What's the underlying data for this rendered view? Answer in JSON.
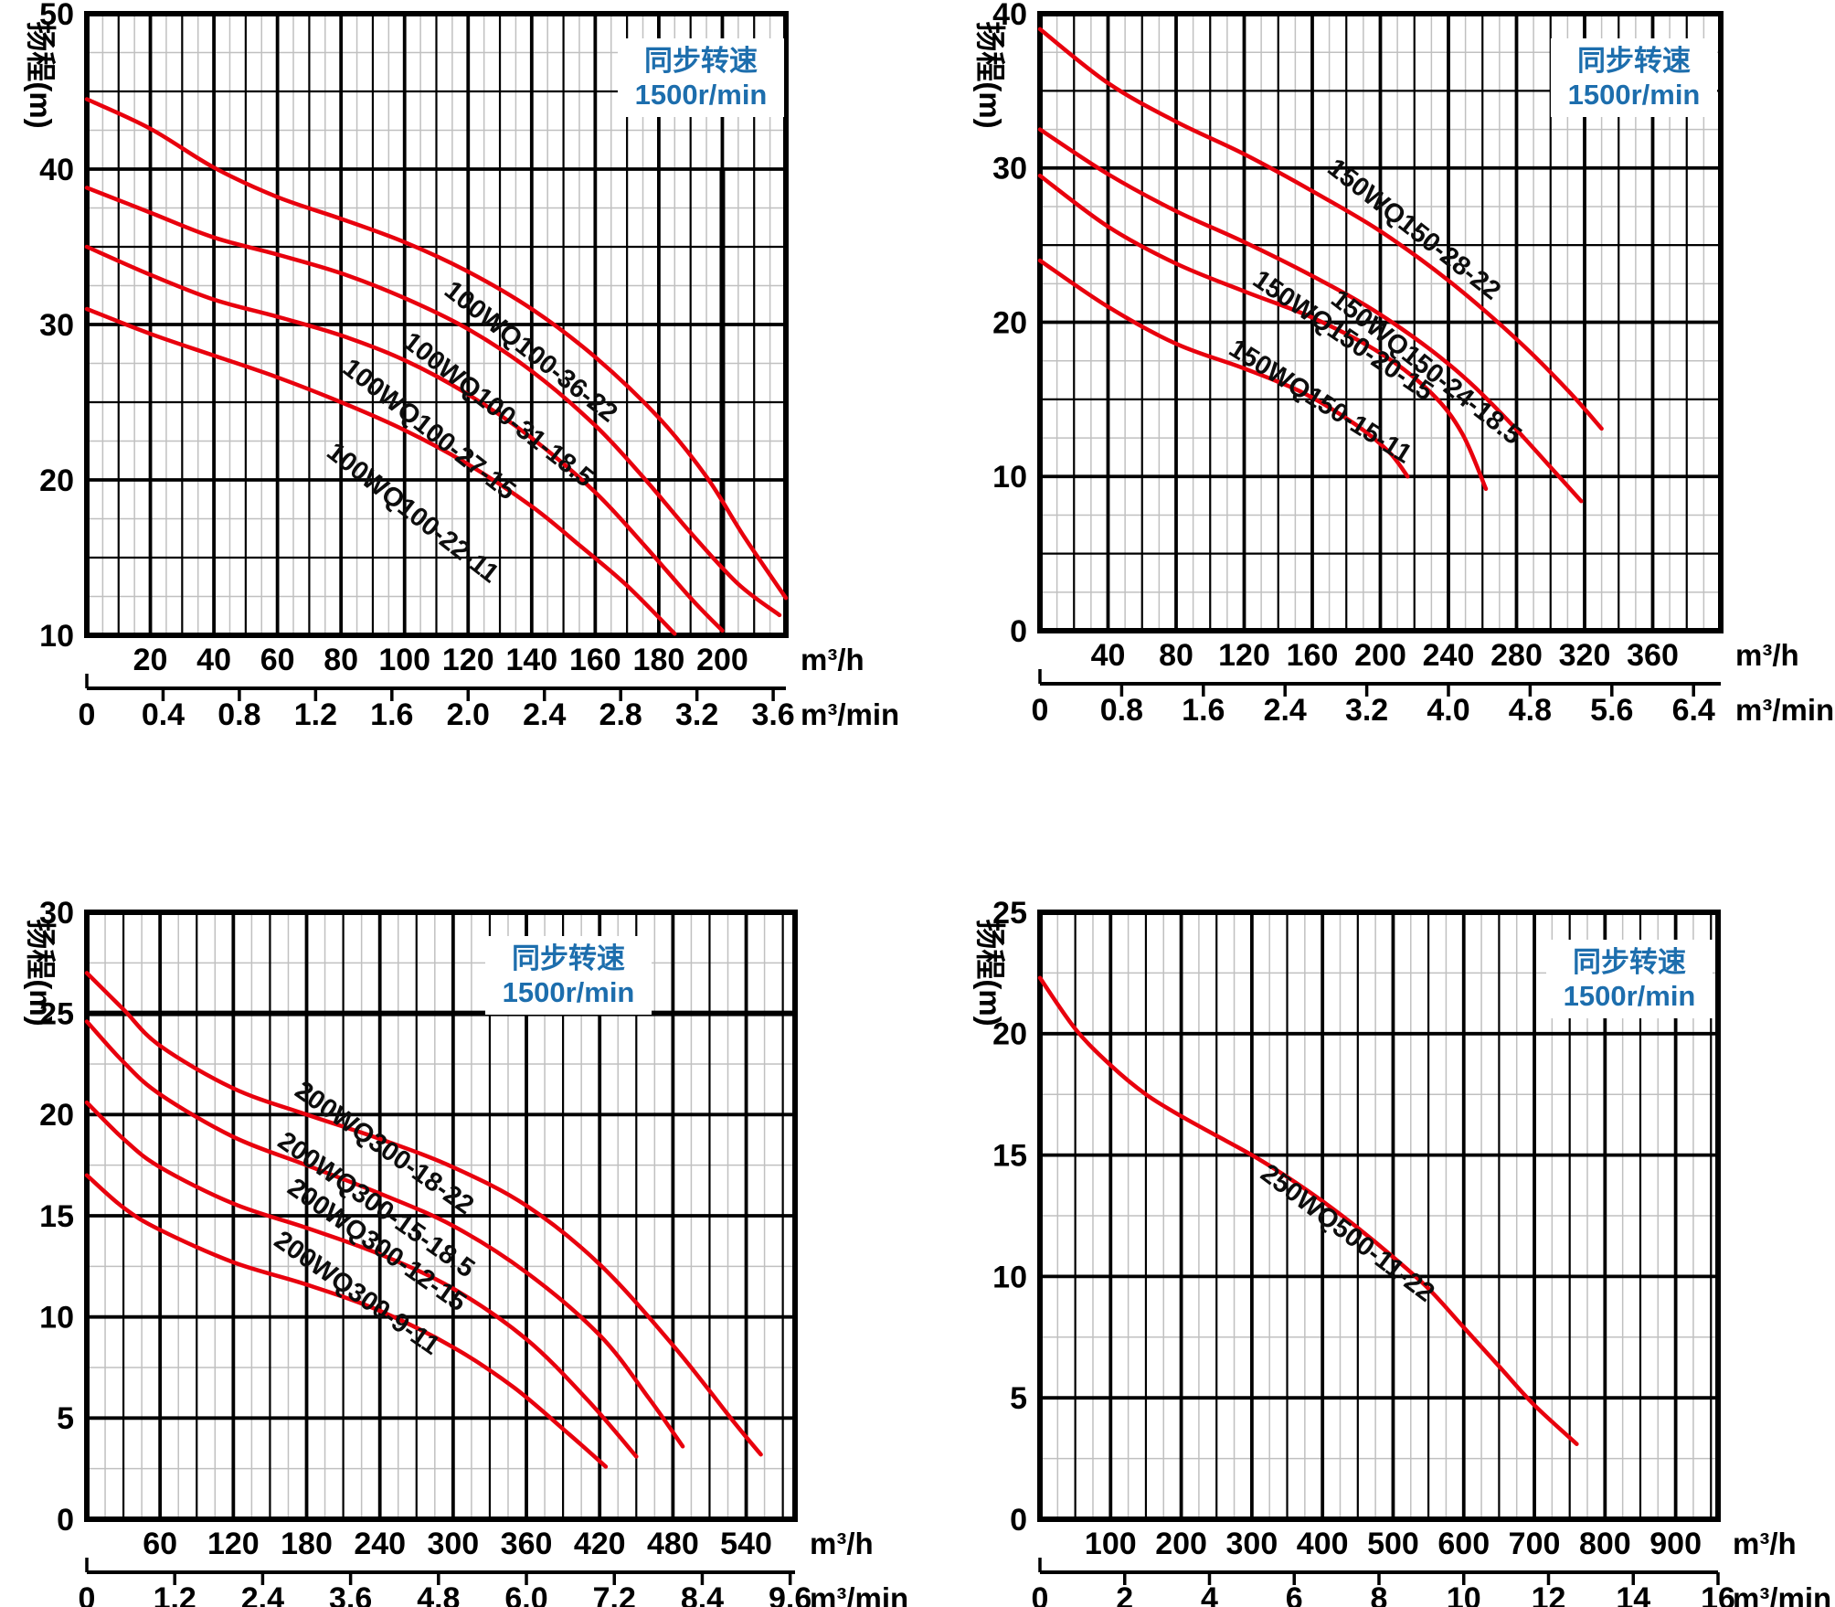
{
  "colors": {
    "curve": "#e8000d",
    "grid_major": "#000000",
    "grid_minor": "#c0c0c0",
    "text": "#000000",
    "note_blue": "#1d6ead",
    "background": "#ffffff"
  },
  "chart_data": [
    {
      "type": "line",
      "name": "100WQ100",
      "y_axis_title": "扬程(m)",
      "speed_note": {
        "line1": "同步转速",
        "line2": "1500r/min"
      },
      "x_axis": {
        "min": 0,
        "max": 220,
        "major_step": 20,
        "mid_step": 10,
        "minor_step": 5,
        "tick_labels": [
          20,
          40,
          60,
          80,
          100,
          120,
          140,
          160,
          180,
          200
        ],
        "unit": "m³/h"
      },
      "x_axis_secondary": {
        "tick_labels": [
          "0",
          "0.4",
          "0.8",
          "1.2",
          "1.6",
          "2.0",
          "2.4",
          "2.8",
          "3.2",
          "3.6"
        ],
        "unit": "m³/min",
        "m3h_per_unit": 60
      },
      "y_axis": {
        "min": 10,
        "max": 50,
        "major_step": 10,
        "mid_step": 5,
        "minor_step": 2.5,
        "tick_labels": [
          50,
          40,
          30,
          20,
          10
        ]
      },
      "emphasis_lines": [
        {
          "orient": "v",
          "at": 200,
          "from": 10,
          "to": 40
        }
      ],
      "series": [
        {
          "label": "100WQ100-36-22",
          "points": [
            [
              0,
              44.5
            ],
            [
              20,
              42.6
            ],
            [
              40,
              40.1
            ],
            [
              60,
              38.2
            ],
            [
              80,
              36.8
            ],
            [
              100,
              35.3
            ],
            [
              120,
              33.4
            ],
            [
              140,
              31.0
            ],
            [
              160,
              27.9
            ],
            [
              180,
              24.0
            ],
            [
              195,
              20.2
            ],
            [
              207,
              16.3
            ],
            [
              220,
              12.4
            ]
          ],
          "label_anchor": [
            112,
            32.0
          ],
          "label_angle": 38
        },
        {
          "label": "100WQ100-31-18.5",
          "points": [
            [
              0,
              38.8
            ],
            [
              20,
              37.2
            ],
            [
              40,
              35.6
            ],
            [
              60,
              34.5
            ],
            [
              80,
              33.3
            ],
            [
              100,
              31.7
            ],
            [
              120,
              29.7
            ],
            [
              140,
              27.0
            ],
            [
              160,
              23.5
            ],
            [
              175,
              20.2
            ],
            [
              190,
              16.6
            ],
            [
              205,
              13.3
            ],
            [
              218,
              11.3
            ]
          ],
          "label_anchor": [
            99,
            28.7
          ],
          "label_angle": 38
        },
        {
          "label": "100WQ100-27-15",
          "points": [
            [
              0,
              35.0
            ],
            [
              20,
              33.2
            ],
            [
              40,
              31.6
            ],
            [
              60,
              30.5
            ],
            [
              80,
              29.3
            ],
            [
              100,
              27.7
            ],
            [
              120,
              25.5
            ],
            [
              140,
              22.7
            ],
            [
              160,
              19.2
            ],
            [
              175,
              15.9
            ],
            [
              190,
              12.4
            ],
            [
              200,
              10.3
            ]
          ],
          "label_anchor": [
            80,
            27.0
          ],
          "label_angle": 38
        },
        {
          "label": "100WQ100-22-11",
          "points": [
            [
              0,
              31.0
            ],
            [
              20,
              29.4
            ],
            [
              40,
              28.0
            ],
            [
              60,
              26.6
            ],
            [
              80,
              25.0
            ],
            [
              100,
              23.2
            ],
            [
              120,
              21.0
            ],
            [
              140,
              18.3
            ],
            [
              155,
              15.8
            ],
            [
              170,
              13.2
            ],
            [
              185,
              10.1
            ]
          ],
          "label_anchor": [
            75,
            21.6
          ],
          "label_angle": 38
        }
      ]
    },
    {
      "type": "line",
      "name": "150WQ150",
      "y_axis_title": "扬程(m)",
      "speed_note": {
        "line1": "同步转速",
        "line2": "1500r/min"
      },
      "x_axis": {
        "min": 0,
        "max": 400,
        "major_step": 40,
        "mid_step": 20,
        "minor_step": 10,
        "tick_labels": [
          40,
          80,
          120,
          160,
          200,
          240,
          280,
          320,
          360
        ],
        "unit": "m³/h"
      },
      "x_axis_secondary": {
        "tick_labels": [
          "0",
          "0.8",
          "1.6",
          "2.4",
          "3.2",
          "4.0",
          "4.8",
          "5.6",
          "6.4"
        ],
        "unit": "m³/min",
        "m3h_per_unit": 60
      },
      "y_axis": {
        "min": 0,
        "max": 40,
        "major_step": 10,
        "mid_step": 5,
        "minor_step": 2.5,
        "tick_labels": [
          40,
          30,
          20,
          10,
          0
        ]
      },
      "emphasis_lines": [],
      "series": [
        {
          "label": "150WQ150-28-22",
          "points": [
            [
              0,
              39.0
            ],
            [
              40,
              35.5
            ],
            [
              80,
              33.0
            ],
            [
              120,
              30.9
            ],
            [
              160,
              28.5
            ],
            [
              200,
              25.9
            ],
            [
              240,
              22.7
            ],
            [
              280,
              18.9
            ],
            [
              310,
              15.6
            ],
            [
              330,
              13.1
            ]
          ],
          "label_anchor": [
            168,
            29.8
          ],
          "label_angle": 38
        },
        {
          "label": "150WQ150-24-18.5",
          "points": [
            [
              0,
              32.5
            ],
            [
              40,
              29.6
            ],
            [
              80,
              27.2
            ],
            [
              120,
              25.2
            ],
            [
              160,
              23.0
            ],
            [
              200,
              20.5
            ],
            [
              240,
              17.3
            ],
            [
              270,
              14.2
            ],
            [
              300,
              10.6
            ],
            [
              318,
              8.4
            ]
          ],
          "label_anchor": [
            170,
            21.3
          ],
          "label_angle": 38
        },
        {
          "label": "150WQ150-20-15",
          "points": [
            [
              0,
              29.5
            ],
            [
              40,
              26.2
            ],
            [
              80,
              23.8
            ],
            [
              120,
              22.0
            ],
            [
              160,
              20.3
            ],
            [
              200,
              18.0
            ],
            [
              230,
              15.4
            ],
            [
              248,
              12.8
            ],
            [
              262,
              9.2
            ]
          ],
          "label_anchor": [
            124,
            22.5
          ],
          "label_angle": 34
        },
        {
          "label": "150WQ150-15-11",
          "points": [
            [
              0,
              24.0
            ],
            [
              40,
              21.0
            ],
            [
              80,
              18.6
            ],
            [
              120,
              17.0
            ],
            [
              155,
              15.4
            ],
            [
              185,
              13.4
            ],
            [
              205,
              11.6
            ],
            [
              216,
              10.0
            ]
          ],
          "label_anchor": [
            110,
            18.0
          ],
          "label_angle": 32
        }
      ]
    },
    {
      "type": "line",
      "name": "200WQ300",
      "y_axis_title": "扬程(m)",
      "speed_note": {
        "line1": "同步转速",
        "line2": "1500r/min"
      },
      "x_axis": {
        "min": 0,
        "max": 580,
        "major_step": 60,
        "mid_step": 30,
        "minor_step": 15,
        "tick_labels": [
          60,
          120,
          180,
          240,
          300,
          360,
          420,
          480,
          540
        ],
        "unit": "m³/h"
      },
      "x_axis_secondary": {
        "tick_labels": [
          "0",
          "1.2",
          "2.4",
          "3.6",
          "4.8",
          "6.0",
          "7.2",
          "8.4",
          "9.6"
        ],
        "unit": "m³/min",
        "m3h_per_unit": 60
      },
      "y_axis": {
        "min": 0,
        "max": 30,
        "major_step": 5,
        "mid_step": 0,
        "minor_step": 2.5,
        "tick_labels": [
          30,
          25,
          20,
          15,
          10,
          5,
          0
        ]
      },
      "emphasis_lines": [
        {
          "orient": "h",
          "at": 25,
          "from": 0,
          "to": 580
        }
      ],
      "series": [
        {
          "label": "200WQ300-18-22",
          "points": [
            [
              0,
              27.0
            ],
            [
              30,
              25.2
            ],
            [
              60,
              23.4
            ],
            [
              120,
              21.3
            ],
            [
              180,
              20.0
            ],
            [
              240,
              18.8
            ],
            [
              300,
              17.4
            ],
            [
              360,
              15.5
            ],
            [
              420,
              12.6
            ],
            [
              480,
              8.6
            ],
            [
              530,
              4.8
            ],
            [
              552,
              3.2
            ]
          ],
          "label_anchor": [
            169,
            21.0
          ],
          "label_angle": 35
        },
        {
          "label": "200WQ300-15-18.5",
          "points": [
            [
              0,
              24.6
            ],
            [
              30,
              22.6
            ],
            [
              60,
              21.0
            ],
            [
              120,
              18.9
            ],
            [
              180,
              17.5
            ],
            [
              240,
              16.1
            ],
            [
              300,
              14.5
            ],
            [
              360,
              12.2
            ],
            [
              420,
              9.1
            ],
            [
              460,
              6.0
            ],
            [
              488,
              3.6
            ]
          ],
          "label_anchor": [
            155,
            18.5
          ],
          "label_angle": 35
        },
        {
          "label": "200WQ300-12-15",
          "points": [
            [
              0,
              20.6
            ],
            [
              30,
              18.8
            ],
            [
              60,
              17.4
            ],
            [
              120,
              15.6
            ],
            [
              180,
              14.4
            ],
            [
              240,
              13.1
            ],
            [
              300,
              11.4
            ],
            [
              360,
              8.9
            ],
            [
              410,
              5.9
            ],
            [
              450,
              3.1
            ]
          ],
          "label_anchor": [
            163,
            16.2
          ],
          "label_angle": 35
        },
        {
          "label": "200WQ300-9-11",
          "points": [
            [
              0,
              17.0
            ],
            [
              30,
              15.4
            ],
            [
              60,
              14.3
            ],
            [
              120,
              12.7
            ],
            [
              180,
              11.6
            ],
            [
              240,
              10.3
            ],
            [
              300,
              8.5
            ],
            [
              350,
              6.5
            ],
            [
              395,
              4.2
            ],
            [
              425,
              2.6
            ]
          ],
          "label_anchor": [
            152,
            13.6
          ],
          "label_angle": 35
        }
      ]
    },
    {
      "type": "line",
      "name": "250WQ500",
      "y_axis_title": "扬程(m)",
      "speed_note": {
        "line1": "同步转速",
        "line2": "1500r/min"
      },
      "x_axis": {
        "min": 0,
        "max": 960,
        "major_step": 100,
        "mid_step": 50,
        "minor_step": 25,
        "tick_labels": [
          100,
          200,
          300,
          400,
          500,
          600,
          700,
          800,
          900
        ],
        "unit": "m³/h"
      },
      "x_axis_secondary": {
        "tick_labels": [
          "0",
          "2",
          "4",
          "6",
          "8",
          "10",
          "12",
          "14",
          "16"
        ],
        "unit": "m³/min",
        "m3h_per_unit": 60
      },
      "y_axis": {
        "min": 0,
        "max": 25,
        "major_step": 5,
        "mid_step": 0,
        "minor_step": 2.5,
        "tick_labels": [
          25,
          20,
          15,
          10,
          5,
          0
        ]
      },
      "emphasis_lines": [],
      "series": [
        {
          "label": "250WQ500-11-22",
          "points": [
            [
              0,
              22.3
            ],
            [
              50,
              20.2
            ],
            [
              100,
              18.7
            ],
            [
              150,
              17.5
            ],
            [
              200,
              16.6
            ],
            [
              250,
              15.8
            ],
            [
              300,
              15.0
            ],
            [
              350,
              14.1
            ],
            [
              400,
              13.1
            ],
            [
              450,
              12.0
            ],
            [
              500,
              10.8
            ],
            [
              550,
              9.5
            ],
            [
              600,
              7.9
            ],
            [
              650,
              6.3
            ],
            [
              700,
              4.7
            ],
            [
              760,
              3.1
            ]
          ],
          "label_anchor": [
            310,
            14.1
          ],
          "label_angle": 37
        }
      ]
    }
  ]
}
